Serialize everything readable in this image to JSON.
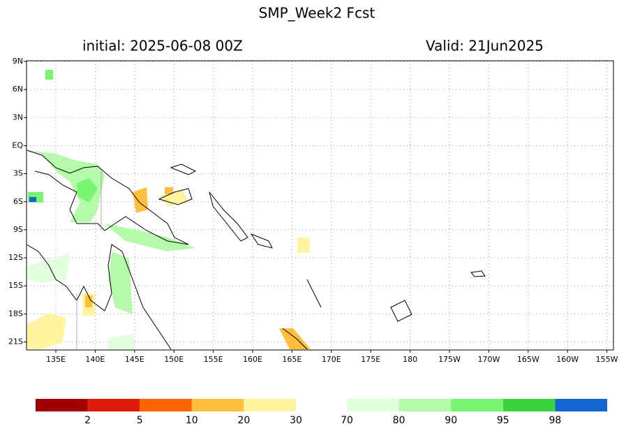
{
  "title": "SMP_Week2  Fcst",
  "initial": "initial: 2025-06-08  00Z",
  "valid": "Valid: 21Jun2025",
  "lat_labels": [
    "9N",
    "6N",
    "3N",
    "EQ",
    "3S",
    "6S",
    "9S",
    "12S",
    "15S",
    "18S",
    "21S"
  ],
  "lon_labels": [
    "135E",
    "140E",
    "145E",
    "150E",
    "155E",
    "160E",
    "165E",
    "170E",
    "175E",
    "180",
    "175W",
    "170W",
    "165W",
    "160W",
    "155W"
  ],
  "colorbar": {
    "colors": [
      "#a00000",
      "#e11a0a",
      "#ff6400",
      "#ffbe3c",
      "#fff5a0",
      "#e1ffdc",
      "#b4faaa",
      "#78f573",
      "#37d23c",
      "#1464d2"
    ],
    "labels": [
      "2",
      "5",
      "10",
      "20",
      "30",
      "70",
      "80",
      "90",
      "95",
      "98"
    ]
  }
}
